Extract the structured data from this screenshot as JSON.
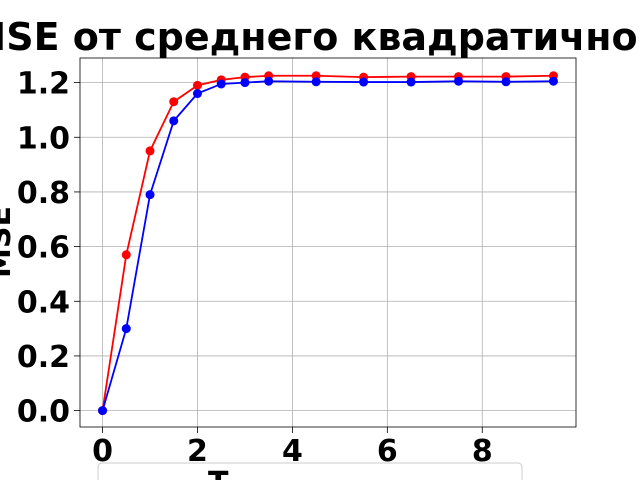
{
  "chart_data": {
    "type": "line",
    "title": "MSE от среднего квадратичного",
    "xlabel": "",
    "ylabel": "MSE",
    "xlim": [
      -0.475,
      9.975
    ],
    "ylim": [
      -0.06,
      1.29
    ],
    "x_ticks": [
      "0",
      "2",
      "4",
      "6",
      "8"
    ],
    "y_ticks": [
      "0.0",
      "0.2",
      "0.4",
      "0.6",
      "0.8",
      "1.0",
      "1.2"
    ],
    "grid": true,
    "legend_position": "below",
    "legend_text_partial": "Т",
    "series": [
      {
        "color": "#ff0000",
        "marker": "circle",
        "x": [
          0,
          0.5,
          1,
          1.5,
          2,
          2.5,
          3,
          3.5,
          4.5,
          5.5,
          6.5,
          7.5,
          8.5,
          9.5
        ],
        "y": [
          0.0,
          0.57,
          0.95,
          1.13,
          1.19,
          1.21,
          1.22,
          1.225,
          1.225,
          1.22,
          1.222,
          1.222,
          1.222,
          1.225
        ]
      },
      {
        "color": "#0000ff",
        "marker": "circle",
        "x": [
          0,
          0.5,
          1,
          1.5,
          2,
          2.5,
          3,
          3.5,
          4.5,
          5.5,
          6.5,
          7.5,
          8.5,
          9.5
        ],
        "y": [
          0.0,
          0.3,
          0.79,
          1.06,
          1.16,
          1.195,
          1.2,
          1.205,
          1.203,
          1.202,
          1.202,
          1.205,
          1.203,
          1.205
        ]
      }
    ]
  }
}
